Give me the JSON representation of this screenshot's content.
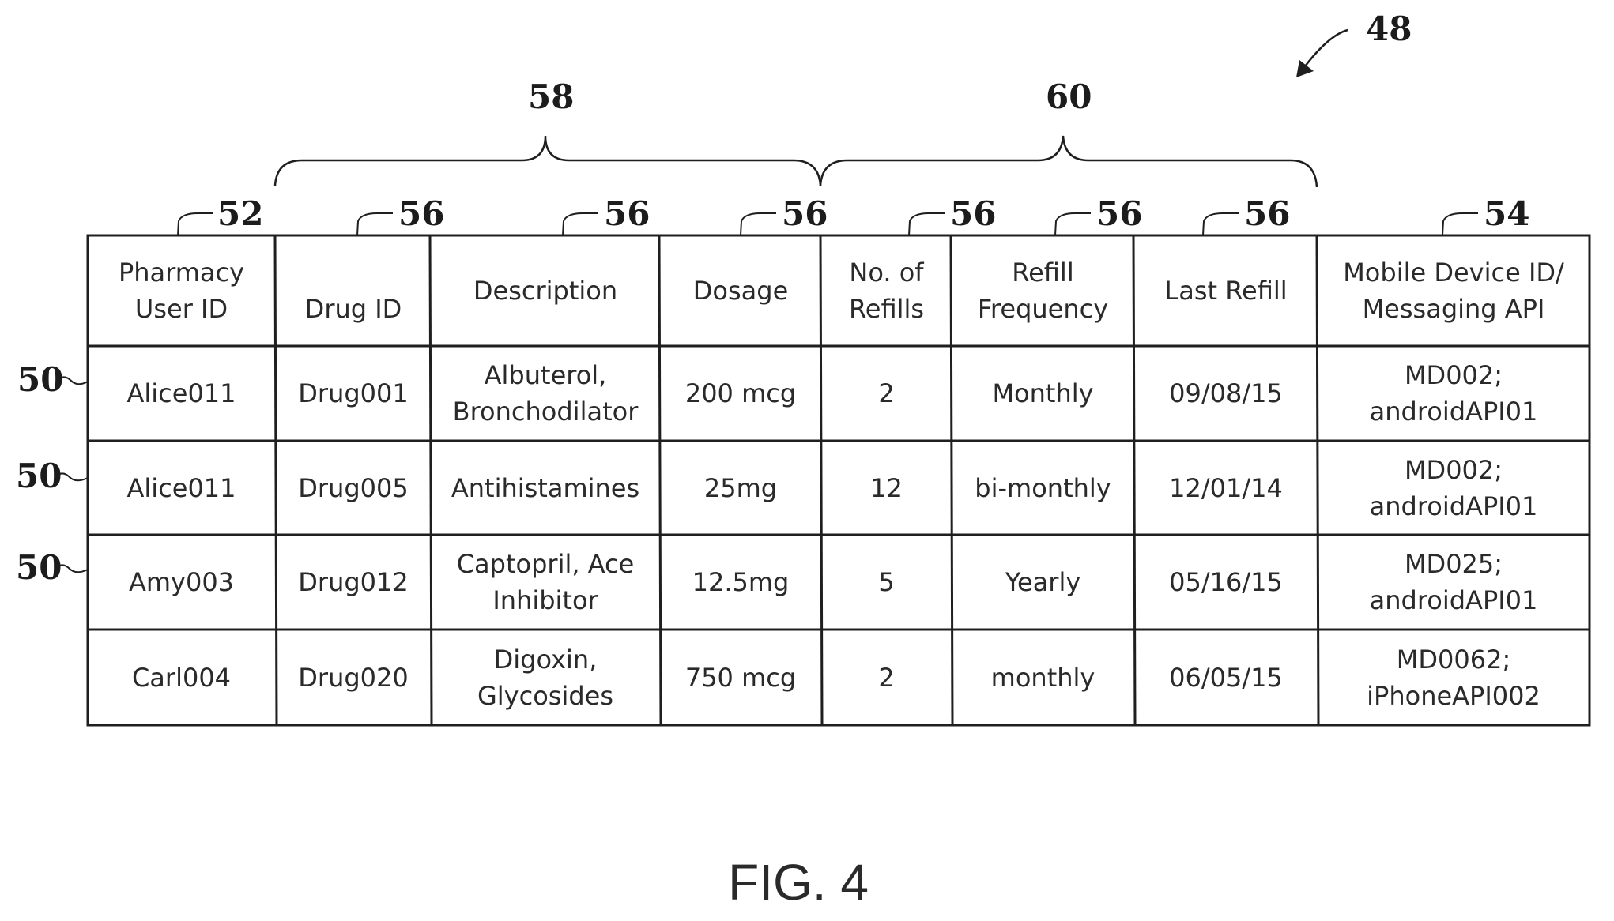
{
  "figure": {
    "label": "FIG. 4",
    "ref_table": "48",
    "ref_group_left": "58",
    "ref_group_right": "60",
    "ref_user_id_col": "52",
    "ref_field_col": "56",
    "ref_device_col": "54",
    "ref_row": "50"
  },
  "table": {
    "headers": [
      "Pharmacy\nUser ID",
      "Drug ID",
      "Description",
      "Dosage",
      "No. of\nRefills",
      "Refill\nFrequency",
      "Last Refill",
      "Mobile Device ID/\nMessaging API"
    ],
    "rows": [
      [
        "Alice011",
        "Drug001",
        "Albuterol,\nBronchodilator",
        "200 mcg",
        "2",
        "Monthly",
        "09/08/15",
        "MD002;\nandroidAPI01"
      ],
      [
        "Alice011",
        "Drug005",
        "Antihistamines",
        "25mg",
        "12",
        "bi-monthly",
        "12/01/14",
        "MD002;\nandroidAPI01"
      ],
      [
        "Amy003",
        "Drug012",
        "Captopril, Ace\nInhibitor",
        "12.5mg",
        "5",
        "Yearly",
        "05/16/15",
        "MD025;\nandroidAPI01"
      ],
      [
        "Carl004",
        "Drug020",
        "Digoxin,\nGlycosides",
        "750 mcg",
        "2",
        "monthly",
        "06/05/15",
        "MD0062;\niPhoneAPI002"
      ]
    ]
  }
}
